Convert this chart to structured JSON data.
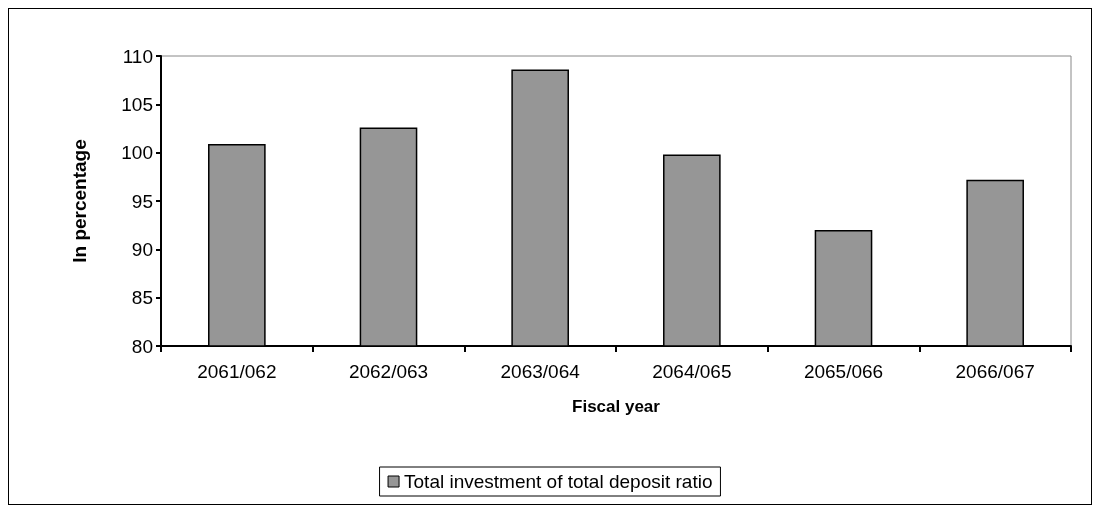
{
  "chart_data": {
    "type": "bar",
    "xlabel": "Fiscal year",
    "ylabel": "In percentage",
    "categories": [
      "2061/062",
      "2062/063",
      "2063/064",
      "2064/065",
      "2065/066",
      "2066/067"
    ],
    "series": [
      {
        "name": "Total investment of total deposit ratio",
        "color": "#969696",
        "values": [
          100.9,
          102.6,
          108.6,
          99.8,
          92.0,
          97.2
        ]
      }
    ],
    "ylim": [
      80,
      110
    ],
    "yticks": [
      80,
      85,
      90,
      95,
      100,
      105,
      110
    ],
    "grid": false,
    "legend": "bottom"
  }
}
